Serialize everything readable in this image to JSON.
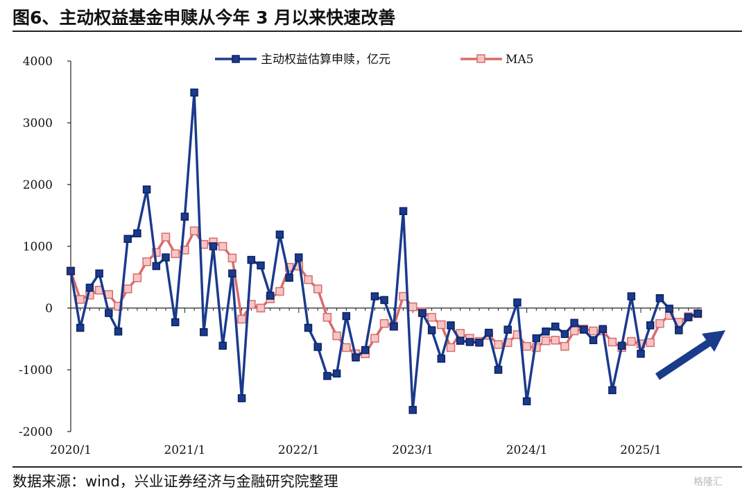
{
  "title": "图6、主动权益基金申赎从今年 3 月以来快速改善",
  "source": "数据来源：wind，兴业证券经济与金融研究院整理",
  "watermark": "格隆汇",
  "colors": {
    "series1": "#1a3a8c",
    "series2": "#d96a6a",
    "series2_fill": "#f6c6c6",
    "arrow": "#1a3a8c"
  },
  "chart_data": {
    "type": "line",
    "title": "",
    "xlabel": "",
    "ylabel": "",
    "ylim": [
      -2000,
      4000
    ],
    "yticks": [
      -2000,
      -1000,
      0,
      1000,
      2000,
      3000,
      4000
    ],
    "xtick_labels": [
      "2020/1",
      "2021/1",
      "2022/1",
      "2023/1",
      "2024/1",
      "2025/1"
    ],
    "legend_position": "top-center",
    "grid": false,
    "x": [
      "2020/1",
      "2020/2",
      "2020/3",
      "2020/4",
      "2020/5",
      "2020/6",
      "2020/7",
      "2020/8",
      "2020/9",
      "2020/10",
      "2020/11",
      "2020/12",
      "2021/1",
      "2021/2",
      "2021/3",
      "2021/4",
      "2021/5",
      "2021/6",
      "2021/7",
      "2021/8",
      "2021/9",
      "2021/10",
      "2021/11",
      "2021/12",
      "2022/1",
      "2022/2",
      "2022/3",
      "2022/4",
      "2022/5",
      "2022/6",
      "2022/7",
      "2022/8",
      "2022/9",
      "2022/10",
      "2022/11",
      "2022/12",
      "2023/1",
      "2023/2",
      "2023/3",
      "2023/4",
      "2023/5",
      "2023/6",
      "2023/7",
      "2023/8",
      "2023/9",
      "2023/10",
      "2023/11",
      "2023/12",
      "2024/1",
      "2024/2",
      "2024/3",
      "2024/4",
      "2024/5",
      "2024/6",
      "2024/7",
      "2024/8",
      "2024/9",
      "2024/10",
      "2024/11",
      "2024/12",
      "2025/1",
      "2025/2",
      "2025/3",
      "2025/4",
      "2025/5",
      "2025/6",
      "2025/7"
    ],
    "series": [
      {
        "name": "主动权益估算申赎，亿元",
        "values": [
          600,
          -320,
          330,
          560,
          -80,
          -380,
          1120,
          1210,
          1920,
          680,
          820,
          -230,
          1480,
          3490,
          -390,
          1000,
          -610,
          560,
          -1460,
          780,
          690,
          200,
          1190,
          490,
          820,
          -320,
          -630,
          -1100,
          -1060,
          -130,
          -800,
          -680,
          190,
          130,
          -300,
          1570,
          -1650,
          -80,
          -360,
          -820,
          -280,
          -530,
          -550,
          -560,
          -400,
          -1000,
          -350,
          90,
          -1510,
          -490,
          -380,
          -300,
          -420,
          -240,
          -350,
          -520,
          -340,
          -1330,
          -610,
          190,
          -740,
          -280,
          160,
          -10,
          -360,
          -150,
          -90
        ]
      },
      {
        "name": "MA5",
        "values": [
          600,
          140,
          210,
          290,
          220,
          30,
          310,
          490,
          750,
          900,
          1150,
          880,
          940,
          1250,
          1030,
          1070,
          1000,
          810,
          -180,
          60,
          0,
          150,
          270,
          660,
          680,
          460,
          310,
          -150,
          -450,
          -640,
          -740,
          -740,
          -490,
          -250,
          -290,
          190,
          20,
          -60,
          -150,
          -270,
          -640,
          -410,
          -490,
          -540,
          -440,
          -590,
          -560,
          -430,
          -620,
          -640,
          -530,
          -520,
          -620,
          -370,
          -340,
          -370,
          -370,
          -550,
          -640,
          -540,
          -580,
          -560,
          -250,
          -120,
          -230,
          -140,
          -90
        ]
      }
    ]
  }
}
